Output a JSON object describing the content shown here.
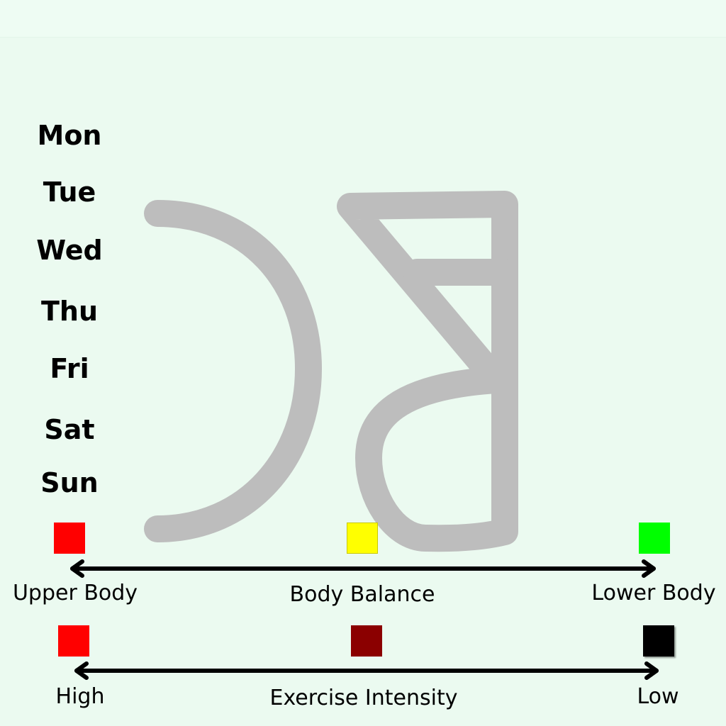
{
  "days": [
    "Mon",
    "Tue",
    "Wed",
    "Thu",
    "Fri",
    "Sat",
    "Sun"
  ],
  "scale_focus": {
    "left_label": "Upper Body",
    "middle_label": "Body Balance",
    "right_label": "Lower Body",
    "swatch_colors": [
      "#ff0000",
      "#ffff00",
      "#00ff00"
    ]
  },
  "scale_intensity": {
    "left_label": "High",
    "middle_label": "Exercise Intensity",
    "right_label": "Low",
    "swatch_colors": [
      "#ff0000",
      "#8b0000",
      "#000000"
    ]
  },
  "colors": {
    "background": "#ebfaf0",
    "logo": "#bdbdbd"
  }
}
